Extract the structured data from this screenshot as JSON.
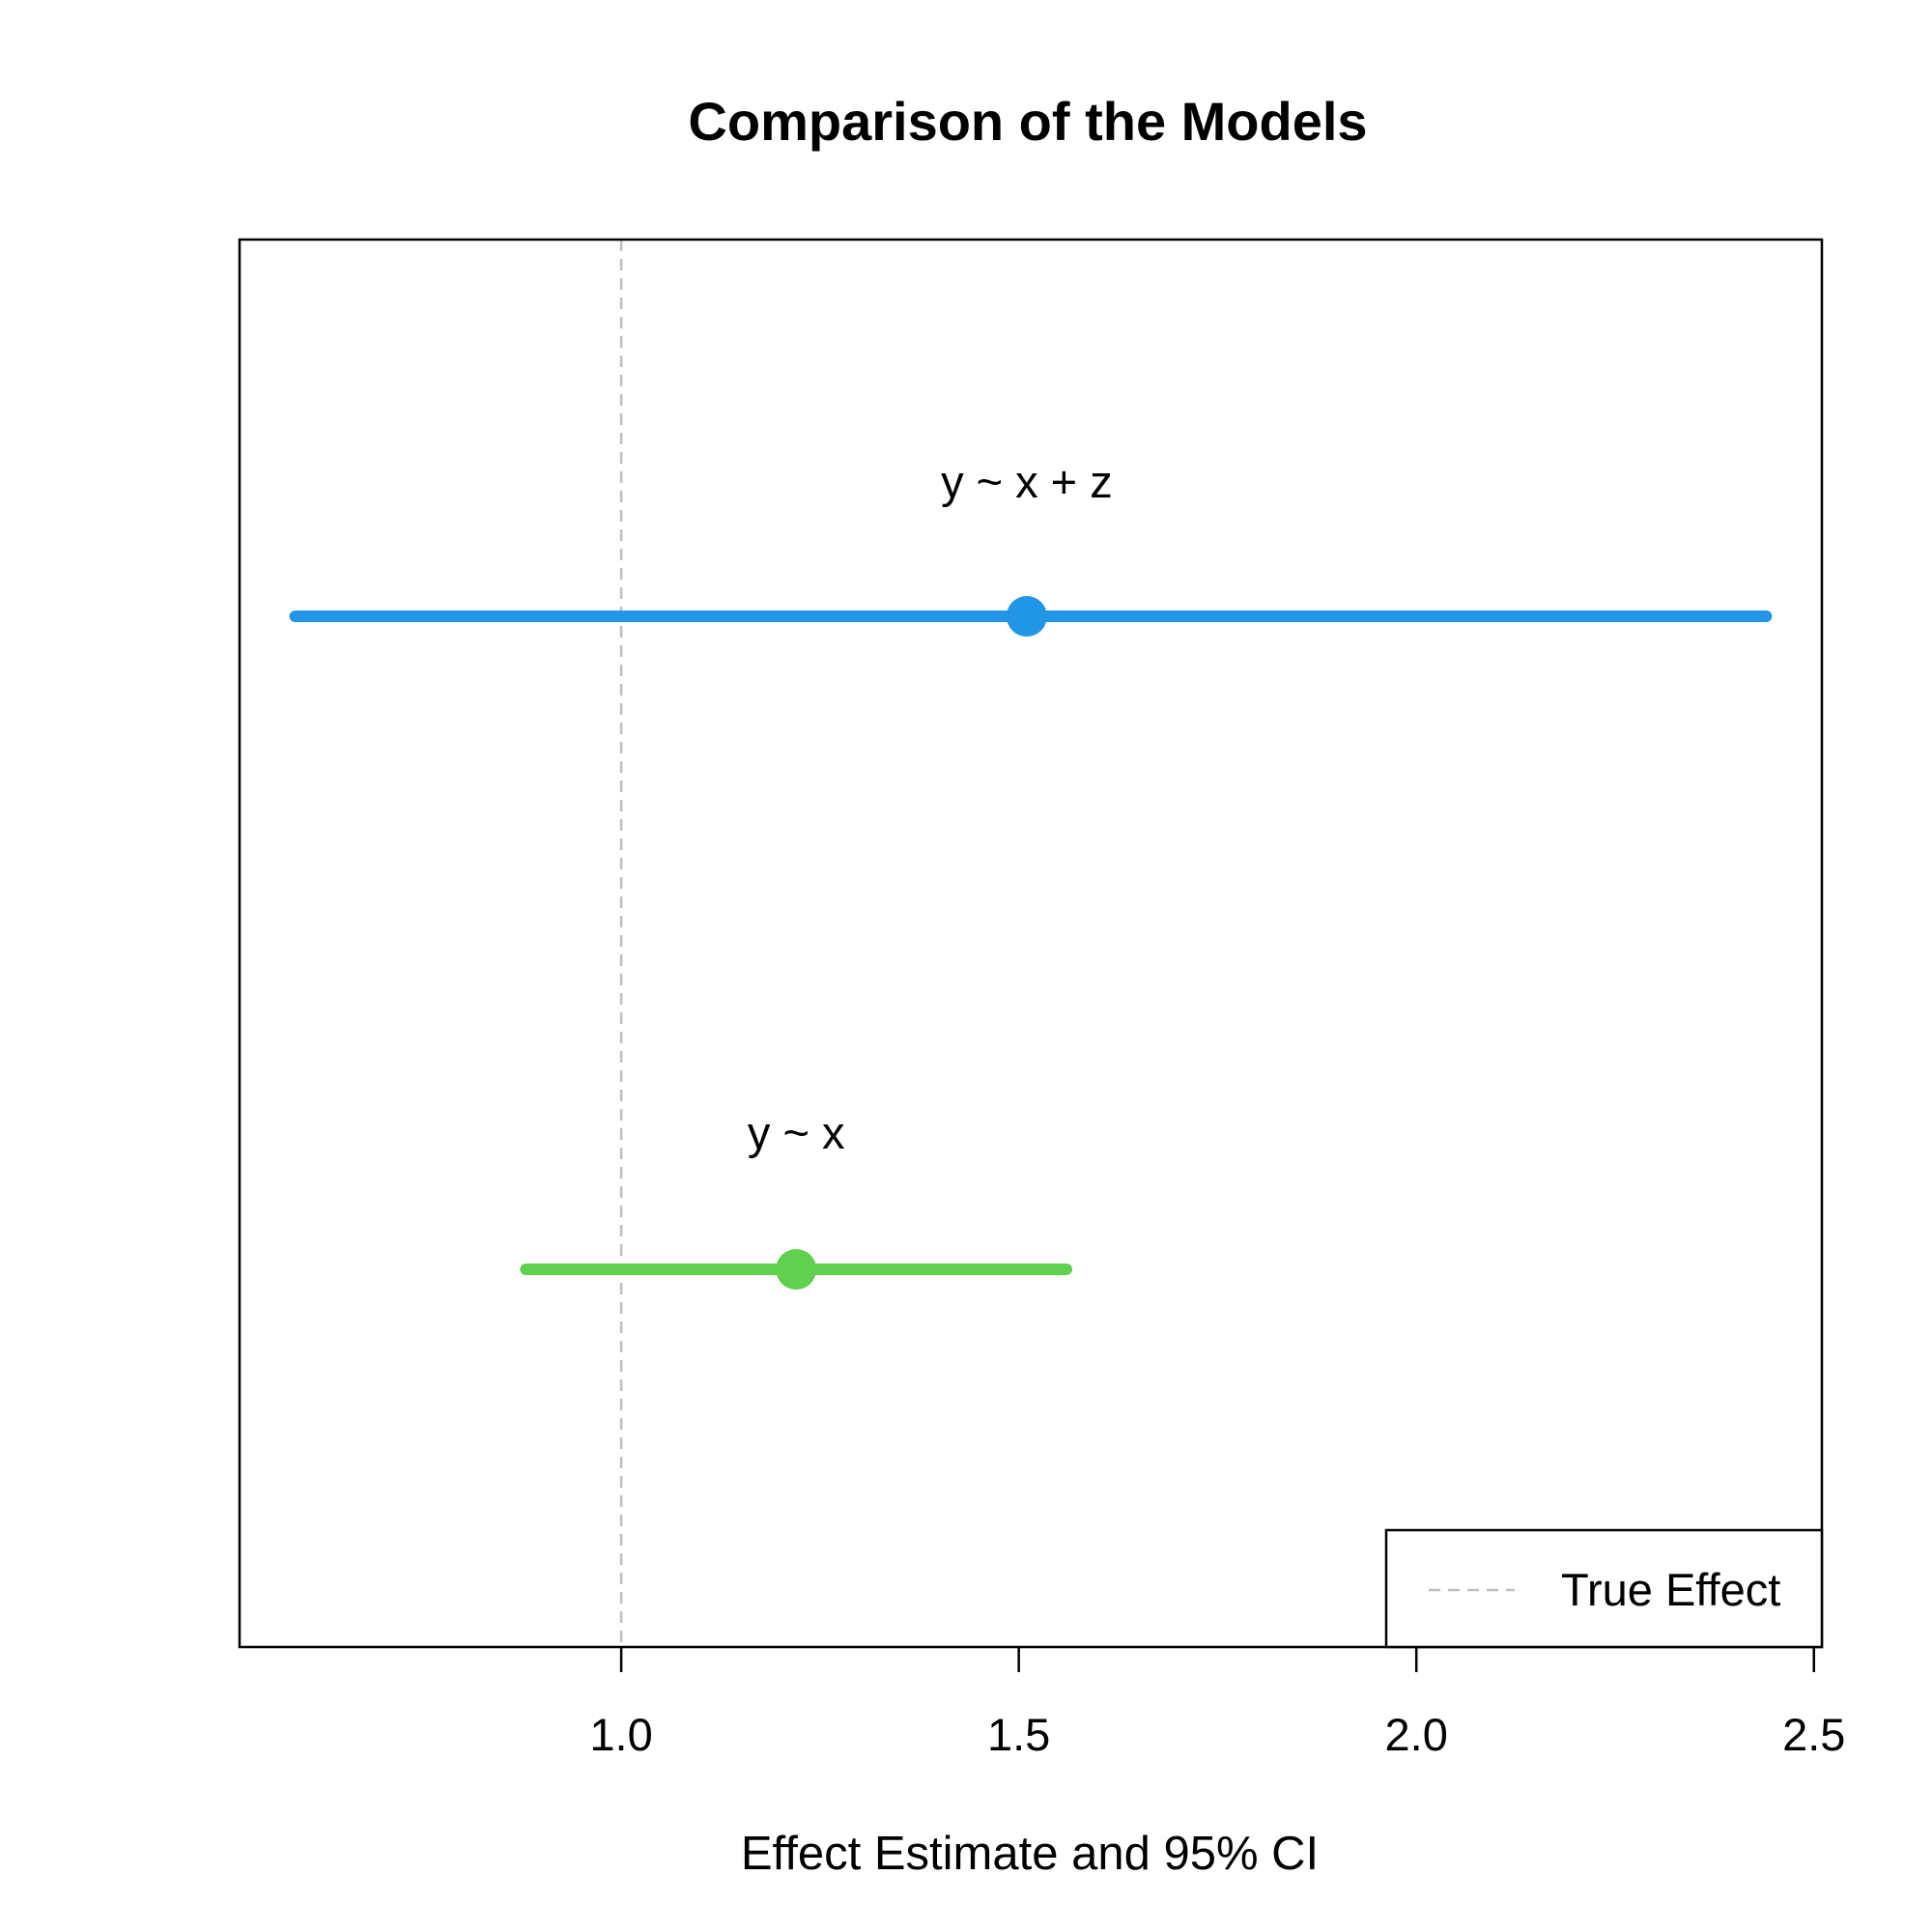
{
  "chart_data": {
    "type": "scatter",
    "title": "Comparison of the Models",
    "xlabel": "Effect Estimate and 95% CI",
    "ylabel": "",
    "xlim": [
      0.52,
      2.51
    ],
    "xticks": [
      1.0,
      1.5,
      2.0,
      2.5
    ],
    "xtick_labels": [
      "1.0",
      "1.5",
      "2.0",
      "2.5"
    ],
    "true_effect": 1.0,
    "true_effect_color": "#bebebe",
    "grid": false,
    "legend": {
      "position": "bottom-right",
      "entries": [
        {
          "label": "True Effect",
          "style": "dashed",
          "color": "#bebebe"
        }
      ]
    },
    "series": [
      {
        "name": "y ~ x + z",
        "label": "y ~ x + z",
        "estimate": 1.51,
        "ci_lower": 0.59,
        "ci_upper": 2.44,
        "color": "#2196e6"
      },
      {
        "name": "y ~ x",
        "label": "y ~ x",
        "estimate": 1.22,
        "ci_lower": 0.88,
        "ci_upper": 1.56,
        "color": "#61d04f"
      }
    ]
  }
}
